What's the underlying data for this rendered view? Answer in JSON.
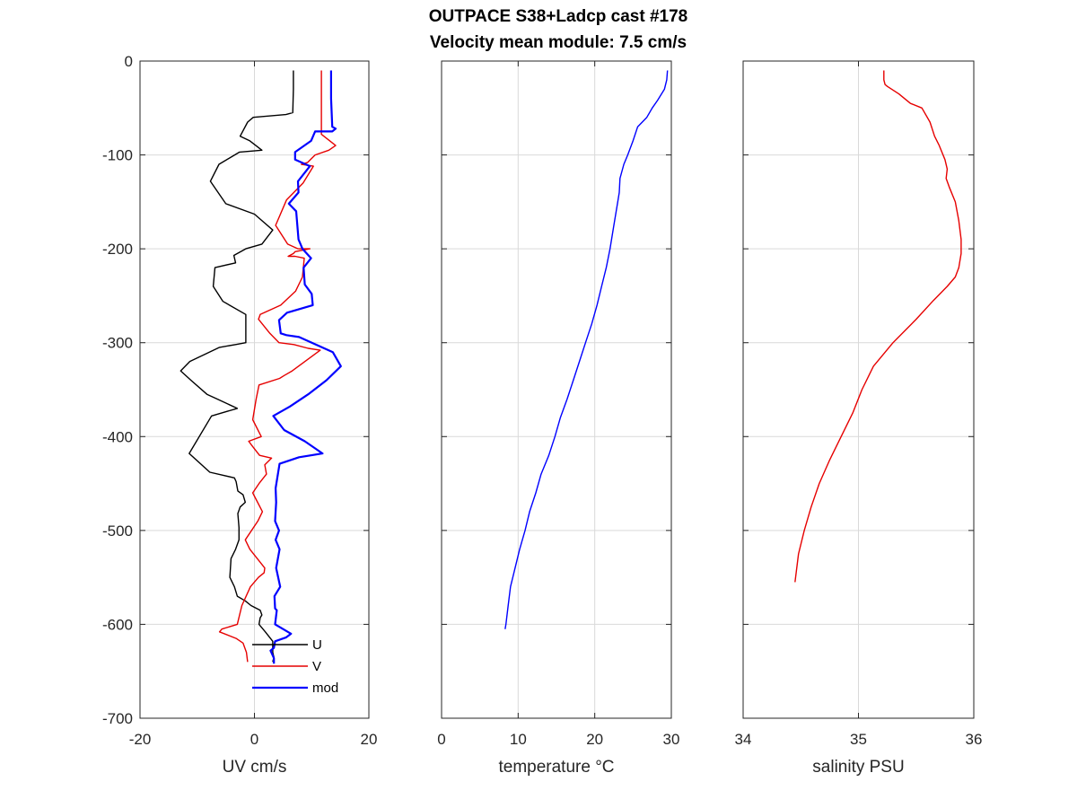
{
  "figure": {
    "title_line1": "OUTPACE S38+Ladcp cast #178",
    "title_line2": "Velocity mean module:  7.5 cm/s"
  },
  "chart_data": [
    {
      "type": "line",
      "xlabel": "UV cm/s",
      "ylabel": "",
      "xlim": [
        -20,
        20
      ],
      "ylim": [
        -700,
        0
      ],
      "xticks": [
        -20,
        0,
        20
      ],
      "yticks": [
        0,
        -100,
        -200,
        -300,
        -400,
        -500,
        -600,
        -700
      ],
      "grid": true,
      "legend_position": "bottom-right",
      "series": [
        {
          "name": "U",
          "color": "#000000",
          "x": [
            6.8,
            6.8,
            6.7,
            5.5,
            -0.2,
            -1.2,
            -2.5,
            -0.8,
            1.3,
            -2.6,
            -6.2,
            -7.7,
            -5,
            0,
            3.2,
            1.3,
            -1.5,
            -3.6,
            -3.3,
            -6.9,
            -7.2,
            -5.5,
            -1.5,
            -1.5,
            -3.3,
            -6.1,
            -11.3,
            -12.9,
            -11.1,
            -8.3,
            -6.5,
            -3,
            -7.5,
            -11.4,
            -7.8,
            -3.5,
            -3.2,
            -2.9,
            -2,
            -1.6,
            -2.5,
            -2.9,
            -2.7,
            -2.7,
            -3.3,
            -4.1,
            -4.3,
            -3.5,
            -3,
            -1.6,
            -0.6,
            1,
            1.3,
            1,
            0.8,
            1.9,
            3.2,
            3.2,
            3.2,
            3.4,
            3.2
          ],
          "y": [
            -10,
            -30,
            -55,
            -57,
            -60,
            -65,
            -80,
            -85,
            -95,
            -97,
            -110,
            -128,
            -152,
            -163,
            -180,
            -195,
            -200,
            -207,
            -215,
            -220,
            -240,
            -256,
            -270,
            -300,
            -302,
            -305,
            -320,
            -330,
            -340,
            -355,
            -360,
            -370,
            -378,
            -418,
            -438,
            -444,
            -448,
            -458,
            -462,
            -470,
            -475,
            -482,
            -497,
            -510,
            -520,
            -530,
            -550,
            -560,
            -570,
            -575,
            -580,
            -585,
            -590,
            -593,
            -600,
            -608,
            -618,
            -623,
            -630,
            -635,
            -640
          ]
        },
        {
          "name": "V",
          "color": "#e60000",
          "x": [
            11.7,
            11.7,
            11.7,
            11.7,
            14.2,
            13,
            10.6,
            9.3,
            8.2,
            10.3,
            8.5,
            5.6,
            3.7,
            5.8,
            7.6,
            9.7,
            7.1,
            6.8,
            5.9,
            7.1,
            8.7,
            8.4,
            7.2,
            4.6,
            1,
            0.9,
            0.7,
            2.7,
            4.3,
            6.9,
            9.4,
            11.5,
            6.6,
            5.2,
            4.4,
            0.8,
            0.3,
            -0.3,
            1.2,
            -1,
            -0.4,
            0.9,
            3,
            1.8,
            2.1,
            0.8,
            -0.3,
            1.4,
            0.6,
            -1.6,
            -0.8,
            1.8,
            1.7,
            0.7,
            -0.7,
            -2.2,
            -3,
            -5.7,
            -6.1,
            -3.2,
            -2,
            -1.4,
            -1.2
          ],
          "y": [
            -10,
            -40,
            -75,
            -78,
            -90,
            -95,
            -100,
            -108,
            -110,
            -112,
            -130,
            -148,
            -175,
            -195,
            -200,
            -200,
            -203,
            -205,
            -208,
            -208,
            -210,
            -230,
            -245,
            -260,
            -270,
            -272,
            -275,
            -290,
            -300,
            -302,
            -306,
            -308,
            -330,
            -335,
            -338,
            -345,
            -360,
            -382,
            -400,
            -405,
            -410,
            -420,
            -423,
            -430,
            -440,
            -450,
            -460,
            -480,
            -490,
            -510,
            -520,
            -540,
            -545,
            -550,
            -560,
            -580,
            -600,
            -605,
            -608,
            -615,
            -620,
            -630,
            -640
          ]
        },
        {
          "name": "mod",
          "color": "#0000ff",
          "x": [
            13.4,
            13.4,
            13.6,
            14.2,
            13.6,
            10.6,
            9.9,
            7.1,
            7.1,
            9.7,
            7.6,
            7.7,
            6,
            7.3,
            7.7,
            8.4,
            9.9,
            8.6,
            8.8,
            10,
            10.2,
            5.7,
            4.3,
            4.6,
            5.6,
            7.8,
            13.7,
            15.1,
            12.6,
            9.4,
            6.2,
            3.3,
            5.2,
            8.8,
            11.9,
            7.8,
            4.4,
            3.7,
            3.8,
            3.6,
            4.3,
            3.7,
            4.4,
            3.8,
            4.5,
            3.5,
            3.6,
            3.9,
            3.6,
            6.4,
            5.5,
            3.6,
            3.4,
            2.8,
            3.4,
            3.4
          ],
          "y": [
            -10,
            -40,
            -70,
            -72,
            -75,
            -75,
            -85,
            -97,
            -105,
            -112,
            -128,
            -140,
            -152,
            -160,
            -190,
            -200,
            -210,
            -220,
            -238,
            -248,
            -260,
            -268,
            -276,
            -290,
            -292,
            -294,
            -310,
            -325,
            -340,
            -355,
            -368,
            -378,
            -393,
            -405,
            -418,
            -422,
            -429,
            -455,
            -470,
            -490,
            -500,
            -510,
            -520,
            -540,
            -560,
            -570,
            -583,
            -585,
            -600,
            -610,
            -614,
            -618,
            -625,
            -628,
            -636,
            -642
          ]
        }
      ],
      "legend": [
        "U",
        "V",
        "mod"
      ]
    },
    {
      "type": "line",
      "xlabel": "temperature °C",
      "xlim": [
        0,
        30
      ],
      "ylim": [
        -700,
        0
      ],
      "xticks": [
        0,
        10,
        20,
        30
      ],
      "yticks": [
        0,
        -100,
        -200,
        -300,
        -400,
        -500,
        -600,
        -700
      ],
      "grid": true,
      "series": [
        {
          "color": "#0000ff",
          "x": [
            29.5,
            29.4,
            29.1,
            28.2,
            27.5,
            26.8,
            25.6,
            25.0,
            24.3,
            23.8,
            23.3,
            23.2,
            23.0,
            22.7,
            22.4,
            22.0,
            21.5,
            20.9,
            20.3,
            19.6,
            18.8,
            18.0,
            17.2,
            16.4,
            15.5,
            14.8,
            14.0,
            13.0,
            12.3,
            11.5,
            10.9,
            10.2,
            9.6,
            9.0,
            8.7,
            8.4,
            8.3
          ],
          "y": [
            -10,
            -20,
            -30,
            -42,
            -50,
            -60,
            -70,
            -85,
            -100,
            -110,
            -125,
            -140,
            -150,
            -165,
            -180,
            -200,
            -220,
            -240,
            -260,
            -280,
            -300,
            -320,
            -340,
            -360,
            -380,
            -400,
            -420,
            -440,
            -460,
            -480,
            -500,
            -520,
            -540,
            -560,
            -580,
            -600,
            -605
          ]
        }
      ]
    },
    {
      "type": "line",
      "xlabel": "salinity PSU",
      "xlim": [
        34,
        36
      ],
      "ylim": [
        -700,
        0
      ],
      "xticks": [
        34,
        35,
        36
      ],
      "yticks": [
        0,
        -100,
        -200,
        -300,
        -400,
        -500,
        -600,
        -700
      ],
      "grid": true,
      "series": [
        {
          "color": "#e60000",
          "x": [
            35.22,
            35.22,
            35.23,
            35.25,
            35.35,
            35.45,
            35.55,
            35.62,
            35.66,
            35.7,
            35.75,
            35.77,
            35.76,
            35.79,
            35.84,
            35.87,
            35.89,
            35.89,
            35.87,
            35.84,
            35.77,
            35.65,
            35.5,
            35.3,
            35.13,
            35.03,
            34.95,
            34.85,
            34.75,
            34.66,
            34.59,
            34.53,
            34.48,
            34.46,
            34.45
          ],
          "y": [
            -10,
            -20,
            -25,
            -27,
            -35,
            -45,
            -50,
            -65,
            -80,
            -90,
            -105,
            -115,
            -125,
            -135,
            -150,
            -170,
            -190,
            -205,
            -220,
            -230,
            -240,
            -255,
            -275,
            -300,
            -325,
            -350,
            -375,
            -400,
            -425,
            -450,
            -475,
            -500,
            -525,
            -545,
            -555
          ]
        }
      ]
    }
  ]
}
